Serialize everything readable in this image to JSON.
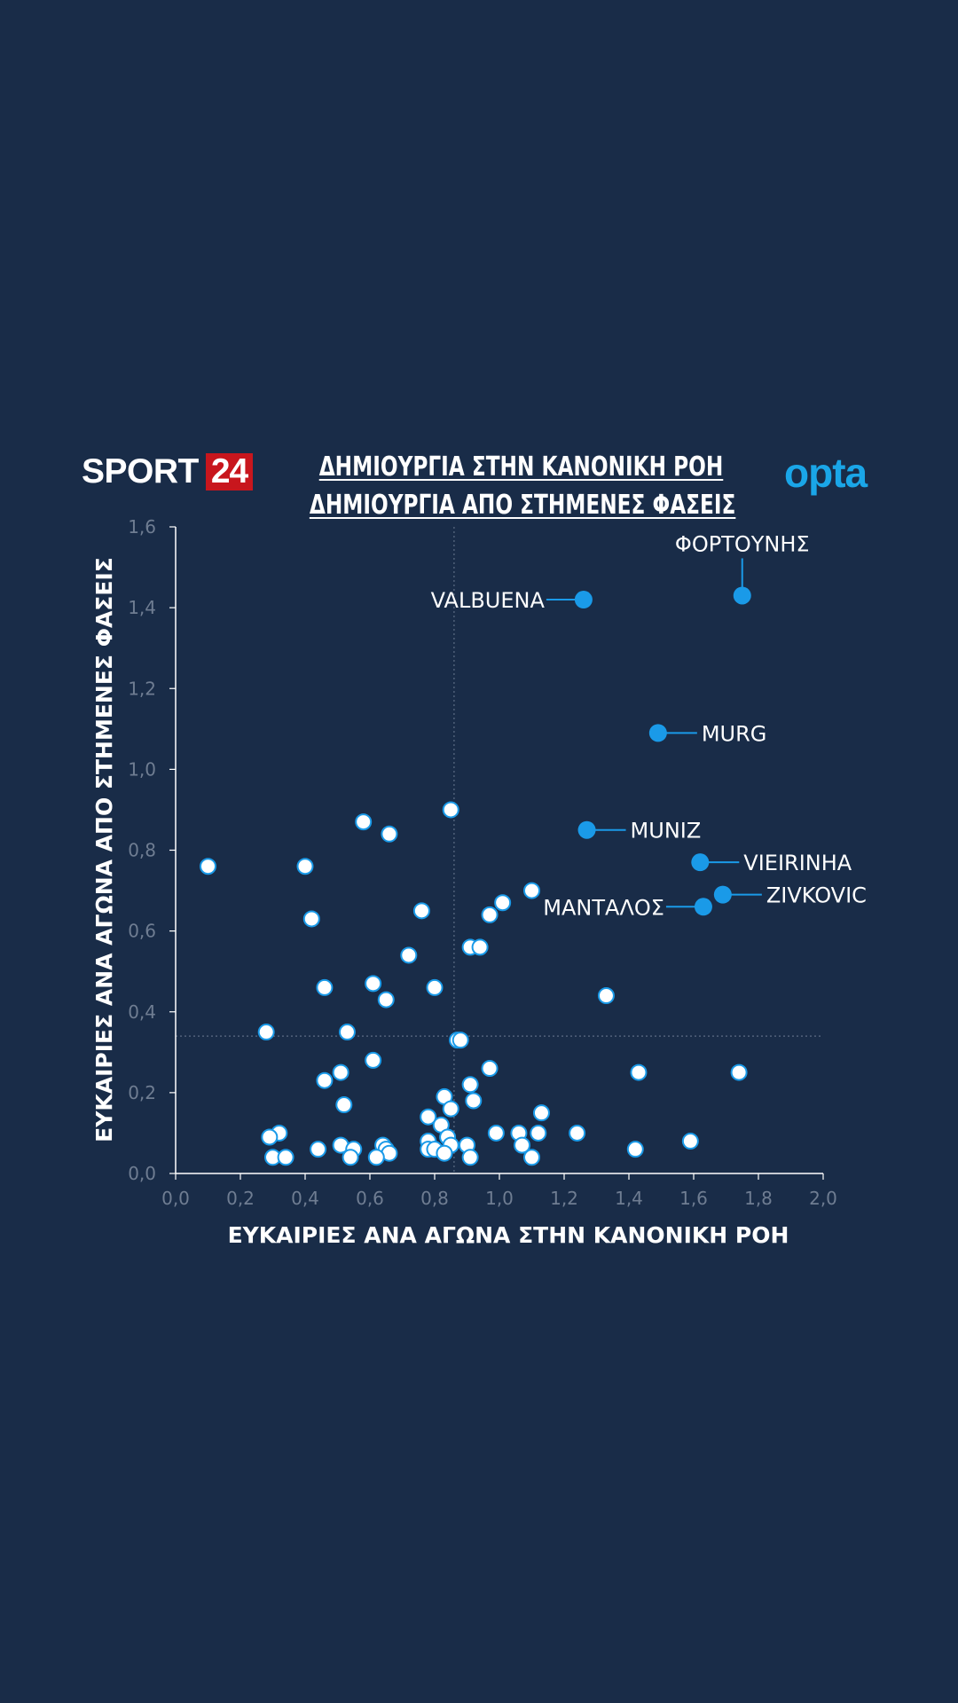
{
  "header": {
    "logo_text": "SPORT",
    "logo_badge": "24",
    "title_line1": "ΔΗΜΙΟΥΡΓΙΑ ΣΤΗΝ ΚΑΝΟΝΙΚΗ ΡΟΗ",
    "title_line2": "ΔΗΜΙΟΥΡΓΙΑ ΑΠΟ ΣΤΗΜΕΝΕΣ ΦΑΣΕΙΣ",
    "opta_logo": "opta"
  },
  "colors": {
    "background": "#192c48",
    "highlight": "#1a9ae8",
    "point_fill": "#ffffff",
    "point_stroke": "#1a9ae8",
    "axis": "#ffffff",
    "tick_text": "#6f7d92",
    "reference_line": "#5d6d85",
    "logo_badge": "#c8161d",
    "opta": "#1aa6e8"
  },
  "chart_data": {
    "type": "scatter",
    "title": "ΔΗΜΙΟΥΡΓΙΑ ΣΤΗΝ ΚΑΝΟΝΙΚΗ ΡΟΗ / ΔΗΜΙΟΥΡΓΙΑ ΑΠΟ ΣΤΗΜΕΝΕΣ ΦΑΣΕΙΣ",
    "xlabel": "ΕΥΚΑΙΡΙΕΣ ΑΝΑ ΑΓΩΝΑ ΣΤΗΝ ΚΑΝΟΝΙΚΗ ΡΟΗ",
    "ylabel": "ΕΥΚΑΙΡΙΕΣ ΑΝΑ ΑΓΩΝΑ ΑΠΟ ΣΤΗΜΕΝΕΣ ΦΑΣΕΙΣ",
    "xlim": [
      0,
      2.0
    ],
    "ylim": [
      0,
      1.6
    ],
    "x_ticks": [
      "0,0",
      "0,2",
      "0,4",
      "0,6",
      "0,8",
      "1,0",
      "1,2",
      "1,4",
      "1,6",
      "1,8",
      "2,0"
    ],
    "y_ticks": [
      "0,0",
      "0,2",
      "0,4",
      "0,6",
      "0,8",
      "1,0",
      "1,2",
      "1,4",
      "1,6"
    ],
    "grid": false,
    "reference_lines": {
      "x": 0.86,
      "y": 0.34
    },
    "highlighted": [
      {
        "label": "ΦΟΡΤΟΥΝΗΣ",
        "x": 1.75,
        "y": 1.43
      },
      {
        "label": "VALBUENA",
        "x": 1.26,
        "y": 1.42
      },
      {
        "label": "MURG",
        "x": 1.49,
        "y": 1.09
      },
      {
        "label": "MUNIZ",
        "x": 1.27,
        "y": 0.85
      },
      {
        "label": "VIEIRINHA",
        "x": 1.62,
        "y": 0.77
      },
      {
        "label": "ZIVKOVIC",
        "x": 1.69,
        "y": 0.69
      },
      {
        "label": "ΜΑΝΤΑΛΟΣ",
        "x": 1.63,
        "y": 0.66
      }
    ],
    "points": [
      [
        0.85,
        0.9
      ],
      [
        0.58,
        0.87
      ],
      [
        0.66,
        0.84
      ],
      [
        0.1,
        0.76
      ],
      [
        0.4,
        0.76
      ],
      [
        1.1,
        0.7
      ],
      [
        1.01,
        0.67
      ],
      [
        0.97,
        0.64
      ],
      [
        0.76,
        0.65
      ],
      [
        0.42,
        0.63
      ],
      [
        0.91,
        0.56
      ],
      [
        0.94,
        0.56
      ],
      [
        0.72,
        0.54
      ],
      [
        0.46,
        0.46
      ],
      [
        0.61,
        0.47
      ],
      [
        0.8,
        0.46
      ],
      [
        0.65,
        0.43
      ],
      [
        1.33,
        0.44
      ],
      [
        0.28,
        0.35
      ],
      [
        0.53,
        0.35
      ],
      [
        0.87,
        0.33
      ],
      [
        0.88,
        0.33
      ],
      [
        0.61,
        0.28
      ],
      [
        0.97,
        0.26
      ],
      [
        0.51,
        0.25
      ],
      [
        0.46,
        0.23
      ],
      [
        0.91,
        0.22
      ],
      [
        1.43,
        0.25
      ],
      [
        1.74,
        0.25
      ],
      [
        0.83,
        0.19
      ],
      [
        0.92,
        0.18
      ],
      [
        0.52,
        0.17
      ],
      [
        0.85,
        0.16
      ],
      [
        1.13,
        0.15
      ],
      [
        0.78,
        0.14
      ],
      [
        0.82,
        0.12
      ],
      [
        1.24,
        0.1
      ],
      [
        0.32,
        0.1
      ],
      [
        0.29,
        0.09
      ],
      [
        0.84,
        0.09
      ],
      [
        0.78,
        0.08
      ],
      [
        0.99,
        0.1
      ],
      [
        1.06,
        0.1
      ],
      [
        1.12,
        0.1
      ],
      [
        1.59,
        0.08
      ],
      [
        0.51,
        0.07
      ],
      [
        0.64,
        0.07
      ],
      [
        0.85,
        0.07
      ],
      [
        0.9,
        0.07
      ],
      [
        1.07,
        0.07
      ],
      [
        0.78,
        0.06
      ],
      [
        0.8,
        0.06
      ],
      [
        0.44,
        0.06
      ],
      [
        0.55,
        0.06
      ],
      [
        0.65,
        0.06
      ],
      [
        0.83,
        0.05
      ],
      [
        0.66,
        0.05
      ],
      [
        1.42,
        0.06
      ],
      [
        0.3,
        0.04
      ],
      [
        0.34,
        0.04
      ],
      [
        0.54,
        0.04
      ],
      [
        0.62,
        0.04
      ],
      [
        0.91,
        0.04
      ],
      [
        1.1,
        0.04
      ]
    ]
  }
}
